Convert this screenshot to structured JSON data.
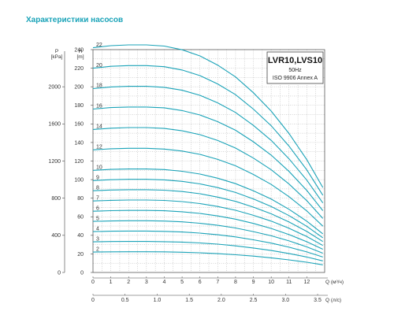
{
  "page": {
    "title": "Характеристики насосов"
  },
  "colors": {
    "curve": "#1aa3b8",
    "grid": "#9a9a9a",
    "axis": "#444444",
    "title": "#1aa3b8"
  },
  "chart_data": {
    "type": "line",
    "legend_box": {
      "model": "LVR10,LVS10",
      "freq": "50Hz",
      "standard": "ISO 9906 Annex A"
    },
    "axes": {
      "h": {
        "label_top": "H",
        "label_unit": "[m]",
        "range": [
          0,
          240
        ],
        "ticks": [
          "0",
          "20",
          "40",
          "60",
          "80",
          "100",
          "120",
          "140",
          "160",
          "180",
          "200",
          "220",
          "240"
        ]
      },
      "p": {
        "label_top": "P",
        "label_unit": "[kPa]",
        "range": [
          0,
          2400
        ],
        "ticks": [
          "0",
          "400",
          "800",
          "1200",
          "1600",
          "2000"
        ]
      },
      "q_m3h": {
        "label": "Q (м³/ч)",
        "range": [
          0,
          13
        ],
        "ticks": [
          "0",
          "1",
          "2",
          "3",
          "4",
          "5",
          "6",
          "7",
          "8",
          "9",
          "10",
          "11",
          "12"
        ]
      },
      "q_ls": {
        "label": "Q (л/с)",
        "range": [
          0,
          3.61
        ],
        "ticks": [
          "0",
          "0.5",
          "1.0",
          "1.5",
          "2.0",
          "2.5",
          "3.0",
          "3.5"
        ]
      }
    },
    "grid": true,
    "flow_q_m3h": [
      0,
      1,
      2,
      3,
      4,
      5,
      6,
      7,
      8,
      9,
      10,
      11,
      12,
      12.9
    ],
    "series": [
      {
        "name": "2",
        "values": [
          22,
          22.2,
          22.3,
          22.3,
          22.2,
          21.8,
          21.2,
          20.3,
          19.1,
          17.6,
          15.8,
          13.6,
          11.0,
          8.2
        ]
      },
      {
        "name": "3",
        "values": [
          33,
          33.3,
          33.4,
          33.4,
          33.2,
          32.7,
          31.8,
          30.5,
          28.7,
          26.4,
          23.7,
          20.4,
          16.6,
          12.5
        ]
      },
      {
        "name": "4",
        "values": [
          44,
          44.4,
          44.6,
          44.6,
          44.3,
          43.6,
          42.4,
          40.6,
          38.3,
          35.2,
          31.6,
          27.2,
          22.1,
          16.6
        ]
      },
      {
        "name": "5",
        "values": [
          55,
          55.5,
          55.7,
          55.7,
          55.4,
          54.5,
          53.0,
          50.8,
          47.9,
          44.0,
          39.5,
          34.0,
          27.6,
          20.8
        ]
      },
      {
        "name": "6",
        "values": [
          66,
          66.6,
          66.8,
          66.8,
          66.5,
          65.4,
          63.6,
          60.9,
          57.4,
          52.8,
          47.4,
          40.8,
          33.1,
          25.0
        ]
      },
      {
        "name": "7",
        "values": [
          77,
          77.7,
          78.0,
          78.0,
          77.6,
          76.3,
          74.2,
          71.1,
          67.0,
          61.6,
          55.3,
          47.6,
          38.7,
          29.1
        ]
      },
      {
        "name": "8",
        "values": [
          88,
          88.8,
          89.1,
          89.1,
          88.6,
          87.2,
          84.8,
          81.2,
          76.6,
          70.4,
          63.2,
          54.4,
          44.2,
          33.3
        ]
      },
      {
        "name": "9",
        "values": [
          99,
          99.9,
          100.3,
          100.3,
          99.7,
          98.1,
          95.4,
          91.4,
          86.2,
          79.2,
          71.1,
          61.2,
          49.7,
          37.4
        ]
      },
      {
        "name": "10",
        "values": [
          110,
          111.0,
          111.4,
          111.4,
          110.8,
          109.0,
          106.0,
          101.5,
          95.7,
          88.0,
          79.0,
          68.0,
          55.2,
          41.6
        ]
      },
      {
        "name": "12",
        "values": [
          132,
          133.2,
          133.7,
          133.7,
          132.9,
          130.8,
          127.2,
          121.8,
          114.9,
          105.6,
          94.8,
          81.6,
          66.2,
          49.9
        ]
      },
      {
        "name": "14",
        "values": [
          154,
          155.4,
          156.0,
          156.0,
          155.1,
          152.6,
          148.4,
          142.1,
          134.0,
          123.2,
          110.6,
          95.2,
          77.3,
          58.2
        ]
      },
      {
        "name": "16",
        "values": [
          176,
          177.6,
          178.2,
          178.2,
          177.3,
          174.4,
          169.6,
          162.4,
          153.2,
          140.8,
          126.4,
          108.8,
          88.3,
          66.6
        ]
      },
      {
        "name": "18",
        "values": [
          198,
          199.8,
          200.5,
          200.5,
          199.4,
          196.2,
          190.8,
          182.7,
          172.3,
          158.4,
          142.2,
          122.4,
          99.4,
          74.9
        ]
      },
      {
        "name": "20",
        "values": [
          220,
          222.0,
          222.8,
          222.8,
          221.6,
          218.0,
          212.0,
          203.0,
          191.5,
          176.0,
          158.0,
          136.0,
          110.4,
          83.2
        ]
      },
      {
        "name": "22",
        "values": [
          242,
          244.2,
          245.1,
          245.1,
          243.8,
          239.8,
          233.2,
          223.3,
          210.6,
          193.6,
          173.8,
          149.6,
          121.4,
          91.5
        ]
      }
    ]
  }
}
